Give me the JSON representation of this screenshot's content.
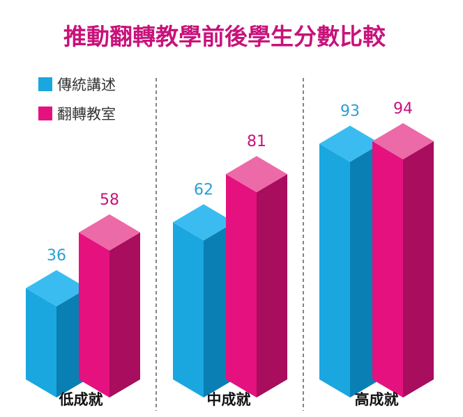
{
  "chart_data": {
    "type": "bar",
    "title": "推動翻轉教學前後學生分數比較",
    "categories": [
      "低成就",
      "中成就",
      "高成就"
    ],
    "series": [
      {
        "name": "傳統講述",
        "values": [
          36,
          62,
          93
        ],
        "color": "#1aa7e0",
        "colors": {
          "front": "#1aa7e0",
          "side": "#0a7fb4",
          "top": "#3bbcf0"
        }
      },
      {
        "name": "翻轉教室",
        "values": [
          58,
          81,
          94
        ],
        "color": "#e4117f",
        "colors": {
          "front": "#e4117f",
          "side": "#a90d5e",
          "top": "#ec6aa7"
        }
      }
    ],
    "ylim": [
      0,
      100
    ],
    "grid": false,
    "legend": "top-left"
  }
}
